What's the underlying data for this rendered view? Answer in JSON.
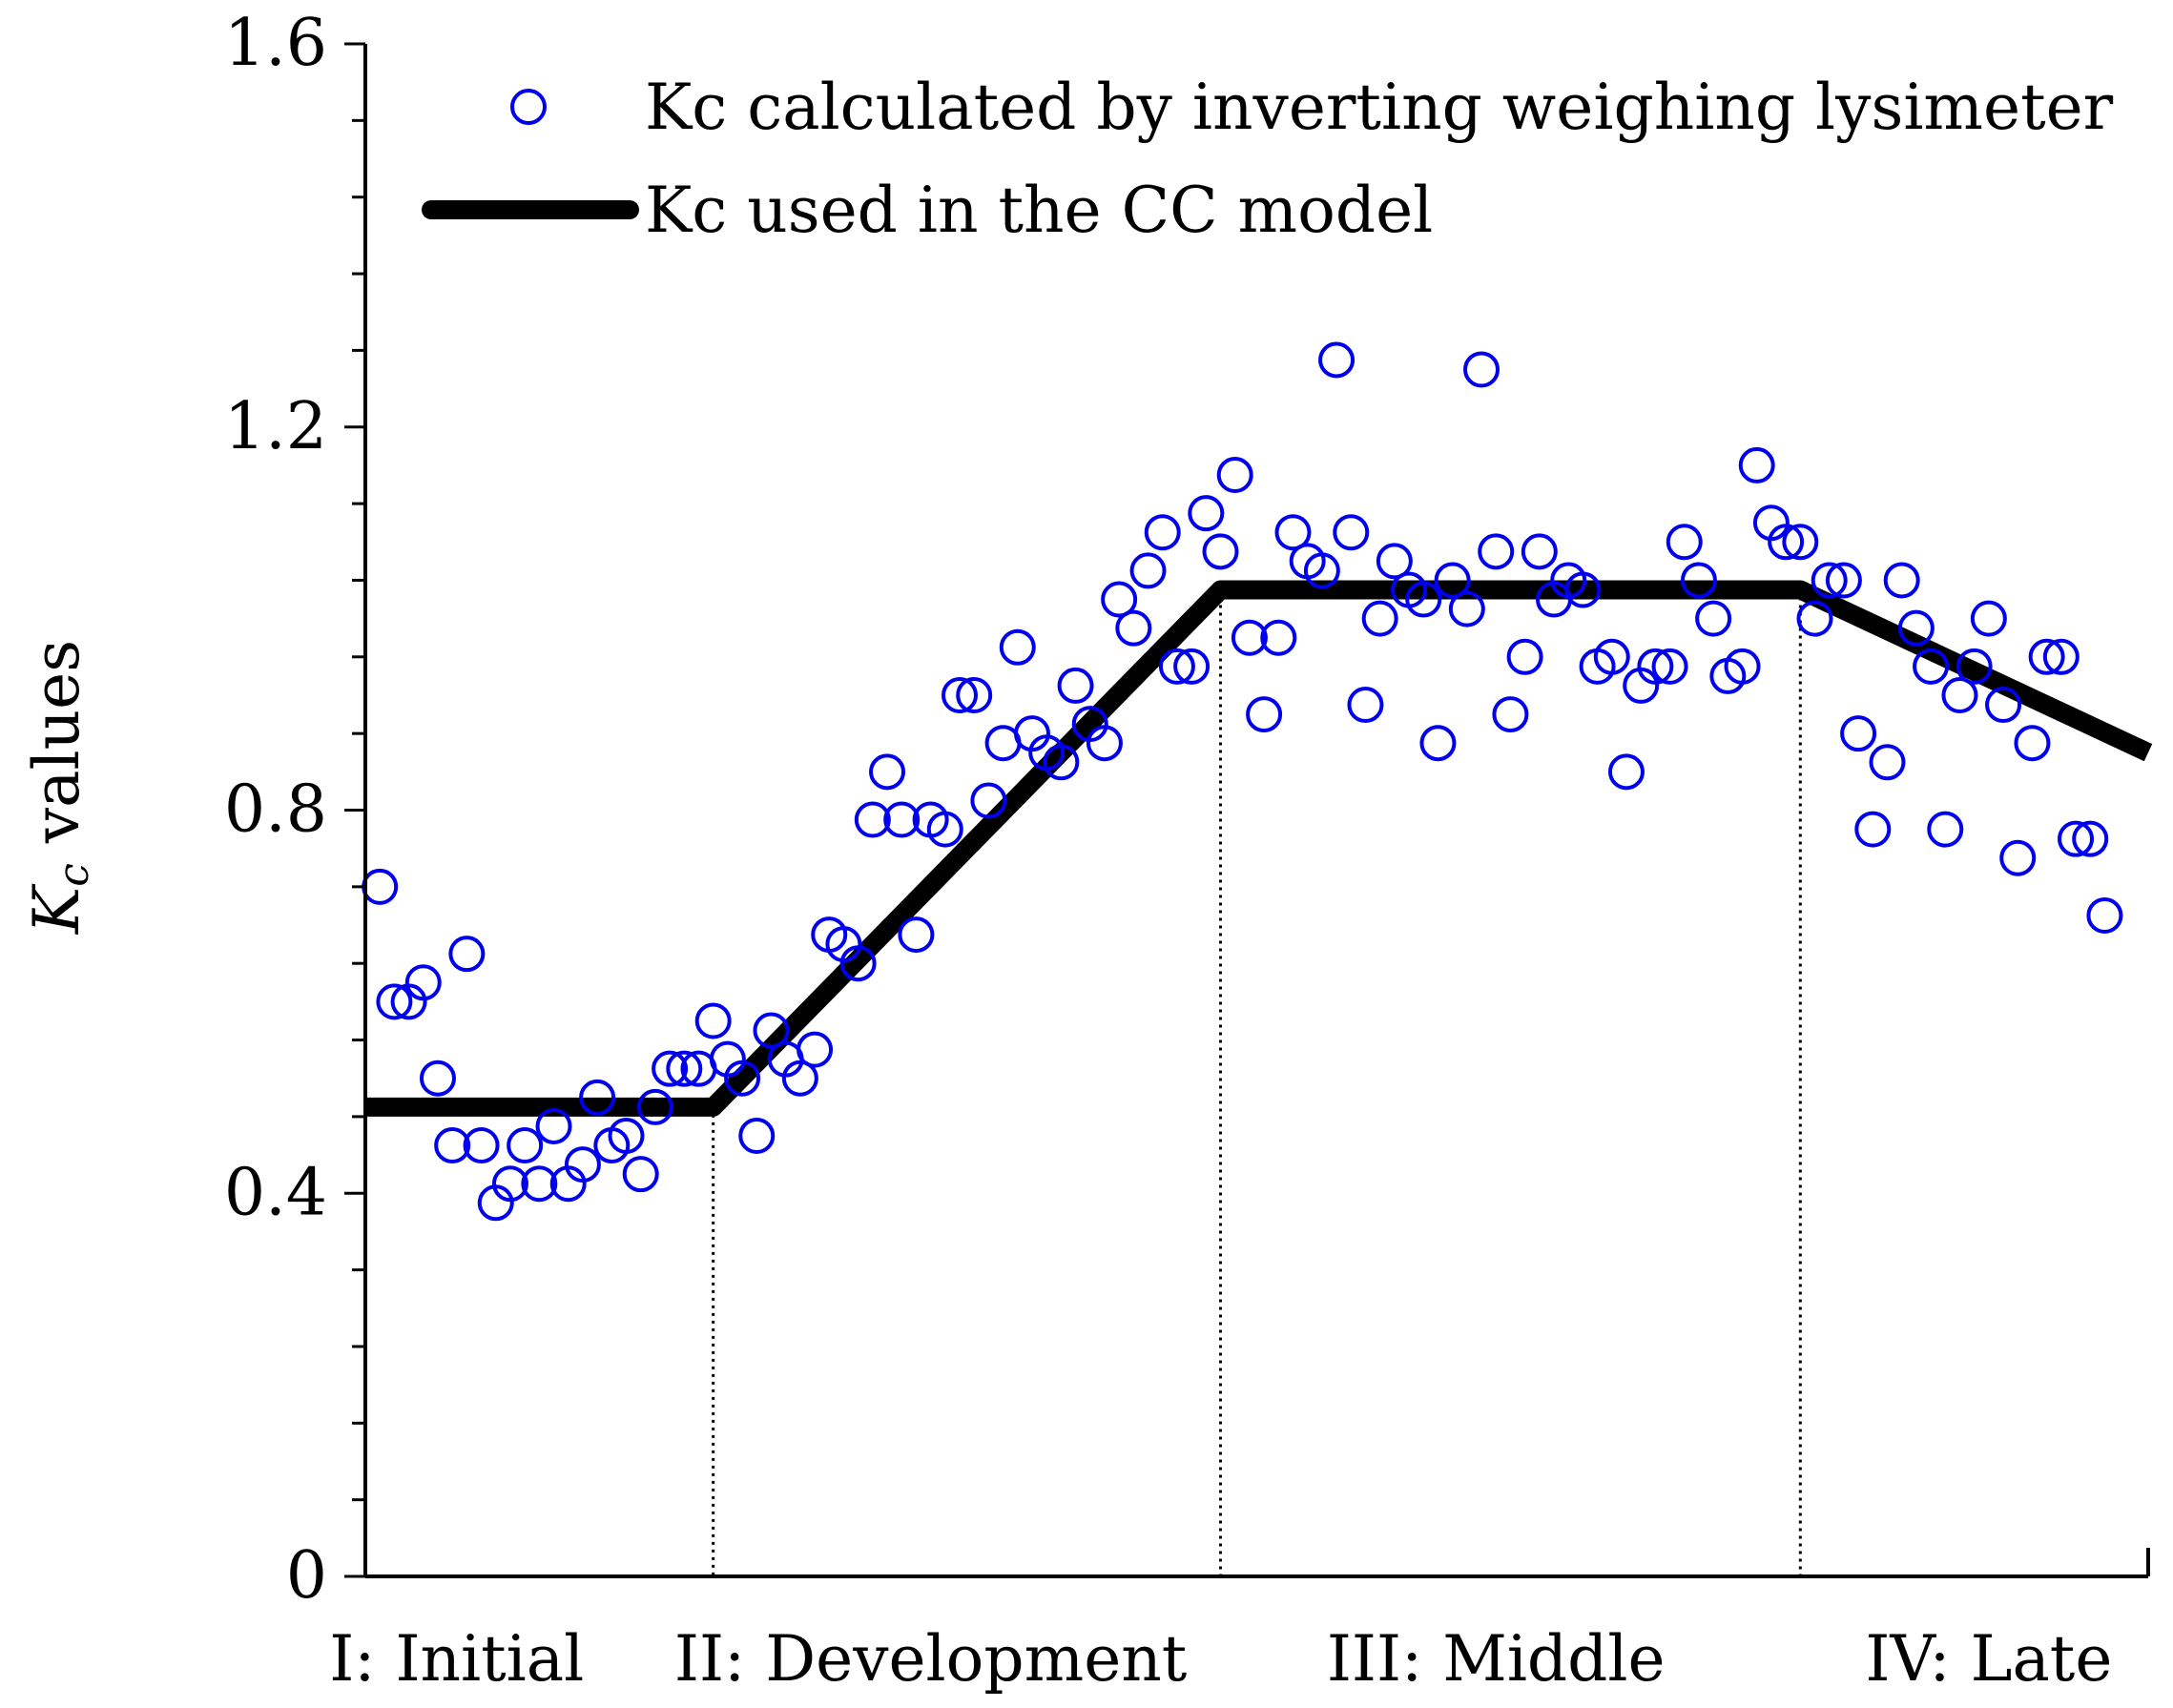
{
  "chart_data": {
    "type": "scatter",
    "title": "",
    "xlabel": "",
    "ylabel": {
      "main": "K",
      "sub": "c",
      "rest": " values"
    },
    "xlim": [
      0,
      123
    ],
    "ylim": [
      0,
      1.6
    ],
    "y_ticks": [
      0,
      0.4,
      0.8,
      1.2,
      1.6
    ],
    "y_tick_labels": [
      "0",
      "0.4",
      "0.8",
      "1.2",
      "1.6"
    ],
    "y_minor_step": 0.08,
    "grid": false,
    "legend_position": "top",
    "colors": {
      "points": "#0000ee",
      "line": "#000000",
      "axis": "#000000"
    },
    "phases": [
      {
        "label": "I: Initial",
        "center": 6.3
      },
      {
        "label": "II: Development",
        "center": 39
      },
      {
        "label": "III: Middle",
        "center": 78
      },
      {
        "label": "IV: Late",
        "center": 112
      }
    ],
    "phase_boundaries": [
      24,
      59,
      99
    ],
    "series": [
      {
        "name": "Kc calculated by inverting weighing lysimeter",
        "kind": "scatter",
        "points": [
          [
            1,
            0.72
          ],
          [
            2,
            0.6
          ],
          [
            3,
            0.6
          ],
          [
            4,
            0.62
          ],
          [
            5,
            0.52
          ],
          [
            6,
            0.45
          ],
          [
            7,
            0.65
          ],
          [
            8,
            0.45
          ],
          [
            9,
            0.39
          ],
          [
            10,
            0.41
          ],
          [
            11,
            0.45
          ],
          [
            12,
            0.41
          ],
          [
            13,
            0.47
          ],
          [
            14,
            0.41
          ],
          [
            15,
            0.43
          ],
          [
            16,
            0.5
          ],
          [
            17,
            0.45
          ],
          [
            18,
            0.46
          ],
          [
            19,
            0.42
          ],
          [
            20,
            0.49
          ],
          [
            21,
            0.53
          ],
          [
            22,
            0.53
          ],
          [
            23,
            0.53
          ],
          [
            24,
            0.58
          ],
          [
            25,
            0.54
          ],
          [
            26,
            0.52
          ],
          [
            27,
            0.46
          ],
          [
            28,
            0.57
          ],
          [
            29,
            0.54
          ],
          [
            30,
            0.52
          ],
          [
            31,
            0.55
          ],
          [
            32,
            0.67
          ],
          [
            33,
            0.66
          ],
          [
            34,
            0.64
          ],
          [
            35,
            0.79
          ],
          [
            36,
            0.84
          ],
          [
            37,
            0.79
          ],
          [
            38,
            0.67
          ],
          [
            39,
            0.79
          ],
          [
            40,
            0.78
          ],
          [
            41,
            0.92
          ],
          [
            42,
            0.92
          ],
          [
            43,
            0.81
          ],
          [
            44,
            0.87
          ],
          [
            45,
            0.97
          ],
          [
            46,
            0.88
          ],
          [
            47,
            0.86
          ],
          [
            48,
            0.85
          ],
          [
            49,
            0.93
          ],
          [
            50,
            0.89
          ],
          [
            51,
            0.87
          ],
          [
            52,
            1.02
          ],
          [
            53,
            0.99
          ],
          [
            54,
            1.05
          ],
          [
            55,
            1.09
          ],
          [
            56,
            0.95
          ],
          [
            57,
            0.95
          ],
          [
            58,
            1.11
          ],
          [
            59,
            1.07
          ],
          [
            60,
            1.15
          ],
          [
            61,
            0.98
          ],
          [
            62,
            0.9
          ],
          [
            63,
            0.98
          ],
          [
            64,
            1.09
          ],
          [
            65,
            1.06
          ],
          [
            66,
            1.05
          ],
          [
            67,
            1.27
          ],
          [
            68,
            1.09
          ],
          [
            69,
            0.91
          ],
          [
            70,
            1.0
          ],
          [
            71,
            1.06
          ],
          [
            72,
            1.03
          ],
          [
            73,
            1.02
          ],
          [
            74,
            0.87
          ],
          [
            75,
            1.04
          ],
          [
            76,
            1.01
          ],
          [
            77,
            1.26
          ],
          [
            78,
            1.07
          ],
          [
            79,
            0.9
          ],
          [
            80,
            0.96
          ],
          [
            81,
            1.07
          ],
          [
            82,
            1.02
          ],
          [
            83,
            1.04
          ],
          [
            84,
            1.03
          ],
          [
            85,
            0.95
          ],
          [
            86,
            0.96
          ],
          [
            87,
            0.84
          ],
          [
            88,
            0.93
          ],
          [
            89,
            0.95
          ],
          [
            90,
            0.95
          ],
          [
            91,
            1.08
          ],
          [
            92,
            1.04
          ],
          [
            93,
            1.0
          ],
          [
            94,
            0.94
          ],
          [
            95,
            0.95
          ],
          [
            96,
            1.16
          ],
          [
            97,
            1.1
          ],
          [
            98,
            1.08
          ],
          [
            99,
            1.08
          ],
          [
            100,
            1.0
          ],
          [
            101,
            1.04
          ],
          [
            102,
            1.04
          ],
          [
            103,
            0.88
          ],
          [
            104,
            0.78
          ],
          [
            105,
            0.85
          ],
          [
            106,
            1.04
          ],
          [
            107,
            0.99
          ],
          [
            108,
            0.95
          ],
          [
            109,
            0.78
          ],
          [
            110,
            0.92
          ],
          [
            111,
            0.95
          ],
          [
            112,
            1.0
          ],
          [
            113,
            0.91
          ],
          [
            114,
            0.75
          ],
          [
            115,
            0.87
          ],
          [
            116,
            0.96
          ],
          [
            117,
            0.96
          ],
          [
            118,
            0.77
          ],
          [
            119,
            0.77
          ],
          [
            120,
            0.69
          ]
        ]
      },
      {
        "name": "Kc used in the CC model",
        "kind": "line",
        "points": [
          [
            0,
            0.49
          ],
          [
            24,
            0.49
          ],
          [
            59,
            1.03
          ],
          [
            99,
            1.03
          ],
          [
            123,
            0.86
          ]
        ]
      }
    ]
  }
}
